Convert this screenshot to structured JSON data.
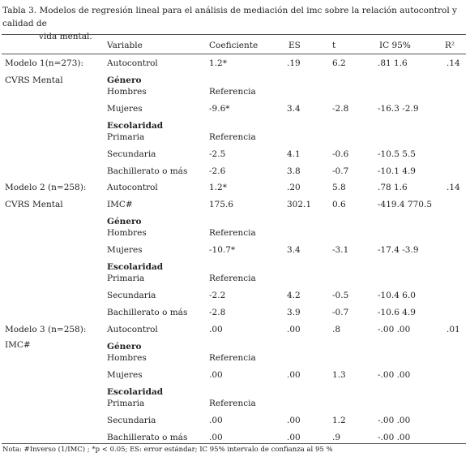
{
  "caption": {
    "line1": "Tabla 3. Modelos de regresión lineal para el análisis de mediación del imc sobre la relación autocontrol y calidad de",
    "line2": "vida mental."
  },
  "headers": {
    "variable": "Variable",
    "coef": "Coeficiente",
    "es": "ES",
    "t": "t",
    "ic": "IC 95%",
    "r2": "R²"
  },
  "models": [
    {
      "label": "Modelo 1(n=273):",
      "sub": "CVRS Mental",
      "r2": ".14",
      "rows": [
        {
          "var": "Autocontrol",
          "coef": "1.2*",
          "es": ".19",
          "t": "6.2",
          "ic": ".81 1.6"
        },
        {
          "var": "Género",
          "bold": true
        },
        {
          "var": "Hombres",
          "coef": "Referencia"
        },
        {
          "var": "Mujeres",
          "coef": "-9.6*",
          "es": "3.4",
          "t": "-2.8",
          "ic": "-16.3 -2.9"
        },
        {
          "var": "Escolaridad",
          "bold": true
        },
        {
          "var": "Primaria",
          "coef": "Referencia"
        },
        {
          "var": "Secundaria",
          "coef": "-2.5",
          "es": "4.1",
          "t": "-0.6",
          "ic": "-10.5 5.5"
        },
        {
          "var": "Bachillerato o más",
          "coef": "-2.6",
          "es": "3.8",
          "t": "-0.7",
          "ic": "-10.1 4.9"
        }
      ]
    },
    {
      "label": "Modelo 2 (n=258):",
      "sub": "CVRS Mental",
      "r2": ".14",
      "rows": [
        {
          "var": "Autocontrol",
          "coef": "1.2*",
          "es": ".20",
          "t": "5.8",
          "ic": ".78 1.6"
        },
        {
          "var": "IMC#",
          "coef": "175.6",
          "es": "302.1",
          "t": "0.6",
          "ic": "-419.4 770.5"
        },
        {
          "var": "Género",
          "bold": true
        },
        {
          "var": "Hombres",
          "coef": "Referencia"
        },
        {
          "var": "Mujeres",
          "coef": "-10.7*",
          "es": "3.4",
          "t": "-3.1",
          "ic": "-17.4 -3.9"
        },
        {
          "var": "Escolaridad",
          "bold": true
        },
        {
          "var": "Primaria",
          "coef": "Referencia"
        },
        {
          "var": "Secundaria",
          "coef": "-2.2",
          "es": "4.2",
          "t": "-0.5",
          "ic": "-10.4 6.0"
        },
        {
          "var": "Bachillerato o más",
          "coef": "-2.8",
          "es": "3.9",
          "t": "-0.7",
          "ic": "-10.6 4.9"
        }
      ]
    },
    {
      "label": "Modelo 3 (n=258):",
      "sub": "IMC#",
      "r2": ".01",
      "rows": [
        {
          "var": "Autocontrol",
          "coef": ".00",
          "es": ".00",
          "t": ".8",
          "ic": "-.00 .00"
        },
        {
          "var": "Género",
          "bold": true
        },
        {
          "var": "Hombres",
          "coef": "Referencia"
        },
        {
          "var": "Mujeres",
          "coef": ".00",
          "es": ".00",
          "t": "1.3",
          "ic": "-.00 .00"
        },
        {
          "var": "Escolaridad",
          "bold": true
        },
        {
          "var": "Primaria",
          "coef": "Referencia"
        },
        {
          "var": "Secundaria",
          "coef": ".00",
          "es": ".00",
          "t": "1.2",
          "ic": "-.00 .00"
        },
        {
          "var": "Bachillerato o más",
          "coef": ".00",
          "es": ".00",
          "t": ".9",
          "ic": "-.00 .00"
        }
      ]
    }
  ],
  "note": "Nota: #Inverso (1/IMC) ; *p < 0.05; ES: error estándar; IC 95% intervalo de confianza al 95 %"
}
